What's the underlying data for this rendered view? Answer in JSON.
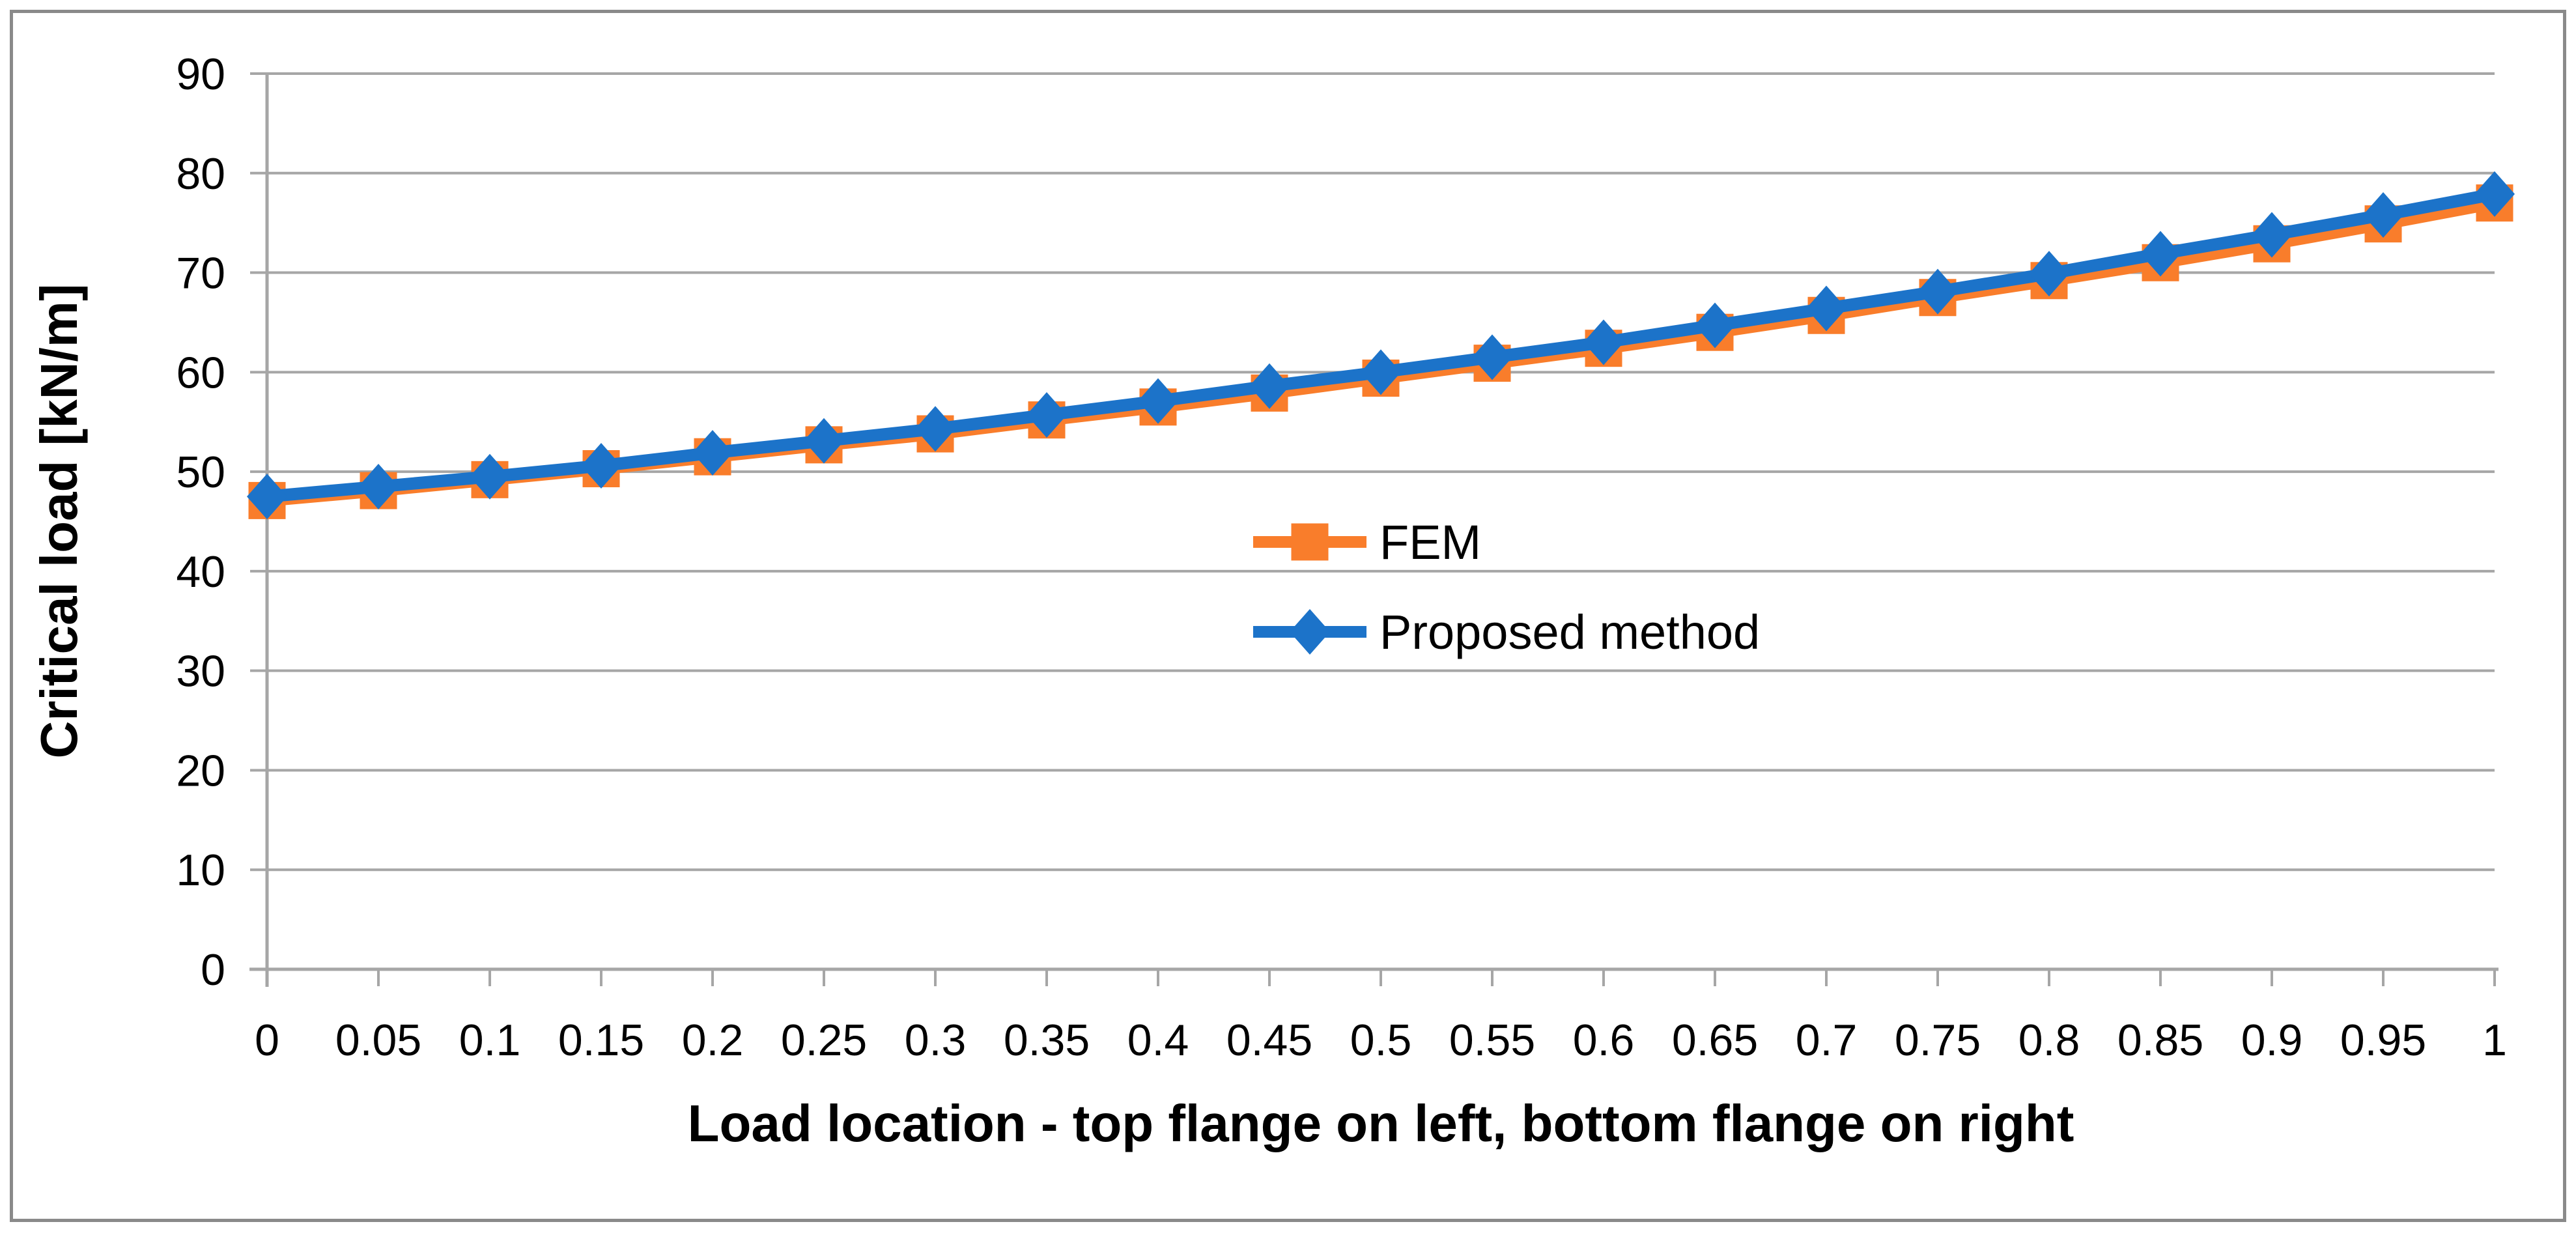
{
  "chart_data": {
    "type": "line",
    "title": "",
    "xlabel": "Load location - top flange on left, bottom flange on right",
    "ylabel": "Critical load [kN/m]",
    "x": [
      0,
      0.05,
      0.1,
      0.15,
      0.2,
      0.25,
      0.3,
      0.35,
      0.4,
      0.45,
      0.5,
      0.55,
      0.6,
      0.65,
      0.7,
      0.75,
      0.8,
      0.85,
      0.9,
      0.95,
      1
    ],
    "x_tick_labels": [
      "0",
      "0.05",
      "0.1",
      "0.15",
      "0.2",
      "0.25",
      "0.3",
      "0.35",
      "0.4",
      "0.45",
      "0.5",
      "0.55",
      "0.6",
      "0.65",
      "0.7",
      "0.75",
      "0.8",
      "0.85",
      "0.9",
      "0.95",
      "1"
    ],
    "y_ticks": [
      0,
      10,
      20,
      30,
      40,
      50,
      60,
      70,
      80,
      90
    ],
    "xlim": [
      0,
      1
    ],
    "ylim": [
      0,
      90
    ],
    "grid": "horizontal",
    "legend_position": "inside-center",
    "series": [
      {
        "name": "FEM",
        "marker": "square",
        "color": "#F97D2B",
        "values": [
          47.1,
          48.1,
          49.2,
          50.3,
          51.5,
          52.7,
          53.8,
          55.2,
          56.5,
          57.9,
          59.4,
          60.9,
          62.4,
          64.0,
          65.7,
          67.5,
          69.2,
          71.0,
          72.9,
          74.9,
          77.0
        ]
      },
      {
        "name": "Proposed method",
        "marker": "diamond",
        "color": "#1C73C9",
        "values": [
          47.5,
          48.5,
          49.5,
          50.6,
          51.9,
          53.1,
          54.3,
          55.7,
          57.1,
          58.6,
          60.0,
          61.5,
          63.0,
          64.7,
          66.4,
          68.1,
          69.9,
          71.9,
          73.8,
          75.8,
          77.9
        ]
      }
    ]
  },
  "colors": {
    "background": "#FFFFFF",
    "chart_border": "#8A8A8A",
    "gridline": "#A6A6A6",
    "axis": "#A6A6A6",
    "text": "#000000",
    "fem_orange": "#F97D2B",
    "proposed_blue": "#1C73C9"
  }
}
